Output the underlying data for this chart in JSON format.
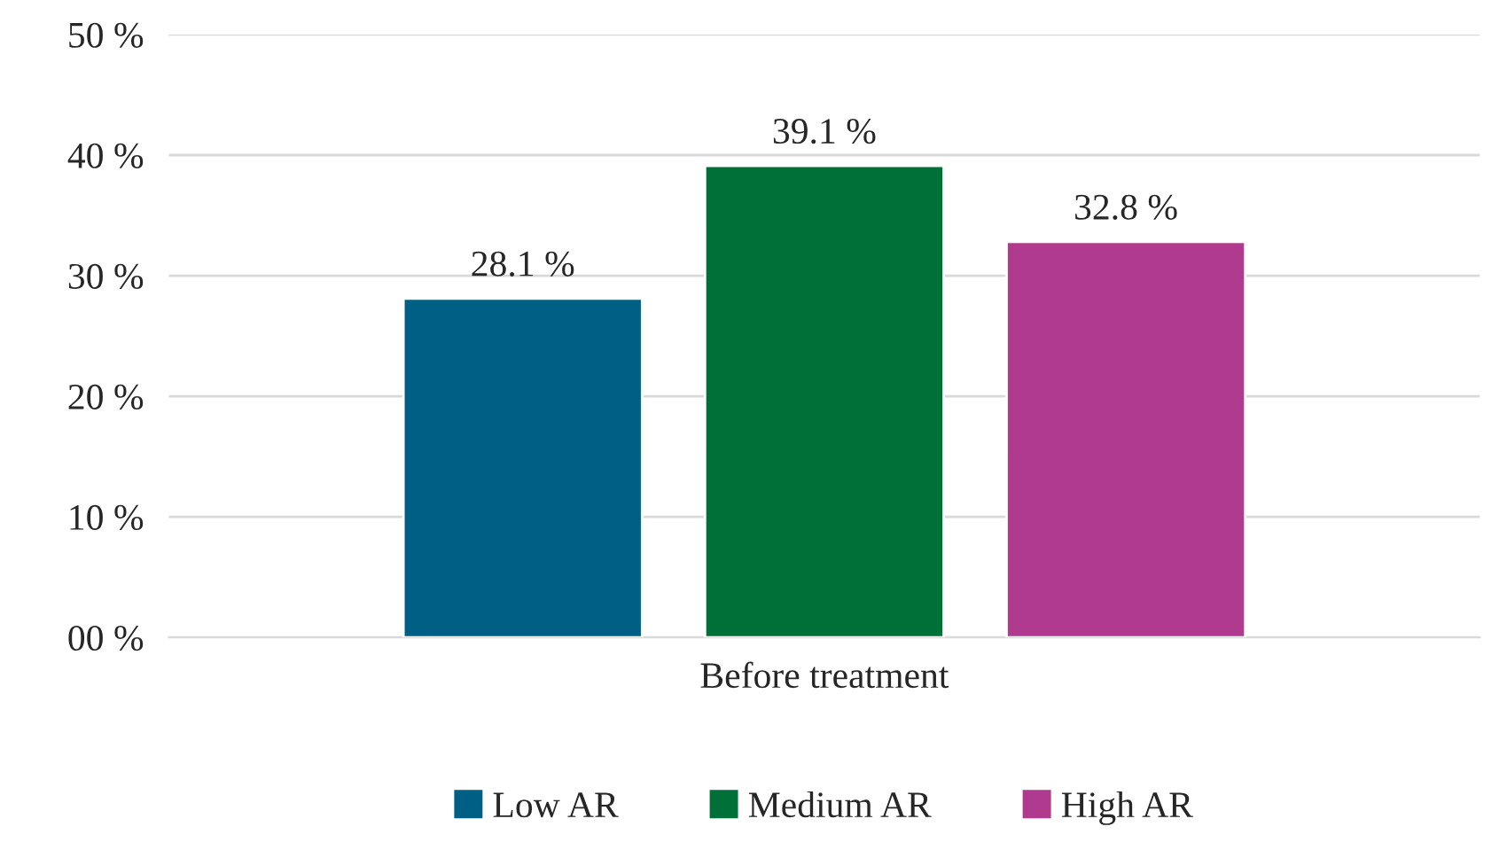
{
  "chart_data": {
    "type": "bar",
    "categories": [
      "Before treatment"
    ],
    "series": [
      {
        "name": "Low AR",
        "color": "#005f84",
        "values": [
          28.1
        ],
        "value_labels": [
          "28.1 %"
        ]
      },
      {
        "name": "Medium AR",
        "color": "#007038",
        "values": [
          39.1
        ],
        "value_labels": [
          "39.1 %"
        ]
      },
      {
        "name": "High AR",
        "color": "#b03a8e",
        "values": [
          32.8
        ],
        "value_labels": [
          "32.8 %"
        ]
      }
    ],
    "ylim": [
      0,
      50
    ],
    "yticks": [
      {
        "value": 0,
        "label": "00 %"
      },
      {
        "value": 10,
        "label": "10 %"
      },
      {
        "value": 20,
        "label": "20 %"
      },
      {
        "value": 30,
        "label": "30 %"
      },
      {
        "value": 40,
        "label": "40 %"
      },
      {
        "value": 50,
        "label": "50 %"
      }
    ],
    "grid": "y",
    "legend": "bottom"
  }
}
